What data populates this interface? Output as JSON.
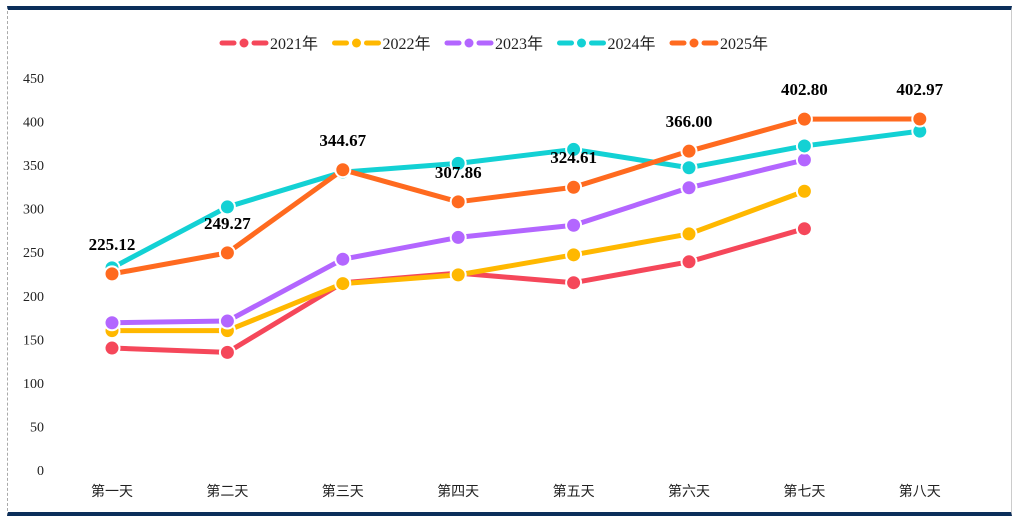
{
  "chart_data": {
    "type": "line",
    "categories": [
      "第一天",
      "第二天",
      "第三天",
      "第四天",
      "第五天",
      "第六天",
      "第七天",
      "第八天"
    ],
    "ylim": [
      0,
      450
    ],
    "yticks": [
      0,
      50,
      100,
      150,
      200,
      250,
      300,
      350,
      400,
      450
    ],
    "grid": false,
    "legend": "top-center",
    "series": [
      {
        "name": "2021年",
        "color": "#f5475a",
        "values": [
          140,
          135,
          215,
          226,
          215,
          239,
          277,
          null
        ]
      },
      {
        "name": "2022年",
        "color": "#ffb800",
        "values": [
          160,
          160,
          214,
          224,
          247,
          271,
          320,
          null
        ]
      },
      {
        "name": "2023年",
        "color": "#b366ff",
        "values": [
          169,
          171,
          242,
          267,
          281,
          324,
          356,
          null
        ]
      },
      {
        "name": "2024年",
        "color": "#13d1d4",
        "values": [
          232,
          302,
          342,
          352,
          368,
          347,
          372,
          389
        ]
      },
      {
        "name": "2025年",
        "color": "#ff6a1f",
        "values": [
          225.12,
          249.27,
          344.67,
          307.86,
          324.61,
          366.0,
          402.8,
          402.97
        ],
        "data_labels": [
          "225.12",
          "249.27",
          "344.67",
          "307.86",
          "324.61",
          "366.00",
          "402.80",
          "402.97"
        ]
      }
    ]
  }
}
